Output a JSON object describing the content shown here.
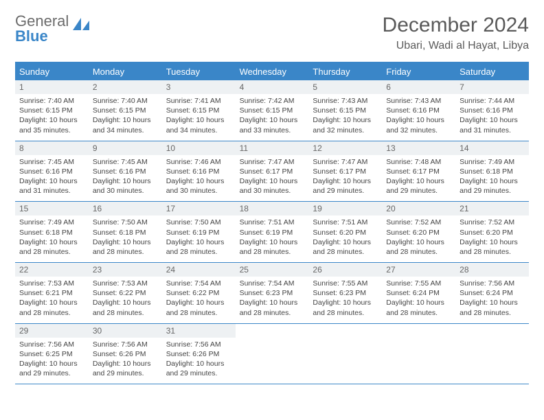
{
  "logo": {
    "part1": "General",
    "part2": "Blue"
  },
  "title": "December 2024",
  "location": "Ubari, Wadi al Hayat, Libya",
  "colors": {
    "blue": "#3a86c8",
    "gray": "#6b6b6b",
    "header_bg": "#eef1f3",
    "text": "#444444"
  },
  "weekdays": [
    "Sunday",
    "Monday",
    "Tuesday",
    "Wednesday",
    "Thursday",
    "Friday",
    "Saturday"
  ],
  "weeks": [
    [
      {
        "n": "1",
        "sr": "7:40 AM",
        "ss": "6:15 PM",
        "dl": "10 hours and 35 minutes."
      },
      {
        "n": "2",
        "sr": "7:40 AM",
        "ss": "6:15 PM",
        "dl": "10 hours and 34 minutes."
      },
      {
        "n": "3",
        "sr": "7:41 AM",
        "ss": "6:15 PM",
        "dl": "10 hours and 34 minutes."
      },
      {
        "n": "4",
        "sr": "7:42 AM",
        "ss": "6:15 PM",
        "dl": "10 hours and 33 minutes."
      },
      {
        "n": "5",
        "sr": "7:43 AM",
        "ss": "6:15 PM",
        "dl": "10 hours and 32 minutes."
      },
      {
        "n": "6",
        "sr": "7:43 AM",
        "ss": "6:16 PM",
        "dl": "10 hours and 32 minutes."
      },
      {
        "n": "7",
        "sr": "7:44 AM",
        "ss": "6:16 PM",
        "dl": "10 hours and 31 minutes."
      }
    ],
    [
      {
        "n": "8",
        "sr": "7:45 AM",
        "ss": "6:16 PM",
        "dl": "10 hours and 31 minutes."
      },
      {
        "n": "9",
        "sr": "7:45 AM",
        "ss": "6:16 PM",
        "dl": "10 hours and 30 minutes."
      },
      {
        "n": "10",
        "sr": "7:46 AM",
        "ss": "6:16 PM",
        "dl": "10 hours and 30 minutes."
      },
      {
        "n": "11",
        "sr": "7:47 AM",
        "ss": "6:17 PM",
        "dl": "10 hours and 30 minutes."
      },
      {
        "n": "12",
        "sr": "7:47 AM",
        "ss": "6:17 PM",
        "dl": "10 hours and 29 minutes."
      },
      {
        "n": "13",
        "sr": "7:48 AM",
        "ss": "6:17 PM",
        "dl": "10 hours and 29 minutes."
      },
      {
        "n": "14",
        "sr": "7:49 AM",
        "ss": "6:18 PM",
        "dl": "10 hours and 29 minutes."
      }
    ],
    [
      {
        "n": "15",
        "sr": "7:49 AM",
        "ss": "6:18 PM",
        "dl": "10 hours and 28 minutes."
      },
      {
        "n": "16",
        "sr": "7:50 AM",
        "ss": "6:18 PM",
        "dl": "10 hours and 28 minutes."
      },
      {
        "n": "17",
        "sr": "7:50 AM",
        "ss": "6:19 PM",
        "dl": "10 hours and 28 minutes."
      },
      {
        "n": "18",
        "sr": "7:51 AM",
        "ss": "6:19 PM",
        "dl": "10 hours and 28 minutes."
      },
      {
        "n": "19",
        "sr": "7:51 AM",
        "ss": "6:20 PM",
        "dl": "10 hours and 28 minutes."
      },
      {
        "n": "20",
        "sr": "7:52 AM",
        "ss": "6:20 PM",
        "dl": "10 hours and 28 minutes."
      },
      {
        "n": "21",
        "sr": "7:52 AM",
        "ss": "6:20 PM",
        "dl": "10 hours and 28 minutes."
      }
    ],
    [
      {
        "n": "22",
        "sr": "7:53 AM",
        "ss": "6:21 PM",
        "dl": "10 hours and 28 minutes."
      },
      {
        "n": "23",
        "sr": "7:53 AM",
        "ss": "6:22 PM",
        "dl": "10 hours and 28 minutes."
      },
      {
        "n": "24",
        "sr": "7:54 AM",
        "ss": "6:22 PM",
        "dl": "10 hours and 28 minutes."
      },
      {
        "n": "25",
        "sr": "7:54 AM",
        "ss": "6:23 PM",
        "dl": "10 hours and 28 minutes."
      },
      {
        "n": "26",
        "sr": "7:55 AM",
        "ss": "6:23 PM",
        "dl": "10 hours and 28 minutes."
      },
      {
        "n": "27",
        "sr": "7:55 AM",
        "ss": "6:24 PM",
        "dl": "10 hours and 28 minutes."
      },
      {
        "n": "28",
        "sr": "7:56 AM",
        "ss": "6:24 PM",
        "dl": "10 hours and 28 minutes."
      }
    ],
    [
      {
        "n": "29",
        "sr": "7:56 AM",
        "ss": "6:25 PM",
        "dl": "10 hours and 29 minutes."
      },
      {
        "n": "30",
        "sr": "7:56 AM",
        "ss": "6:26 PM",
        "dl": "10 hours and 29 minutes."
      },
      {
        "n": "31",
        "sr": "7:56 AM",
        "ss": "6:26 PM",
        "dl": "10 hours and 29 minutes."
      },
      null,
      null,
      null,
      null
    ]
  ],
  "labels": {
    "sunrise": "Sunrise:",
    "sunset": "Sunset:",
    "daylight": "Daylight:"
  }
}
